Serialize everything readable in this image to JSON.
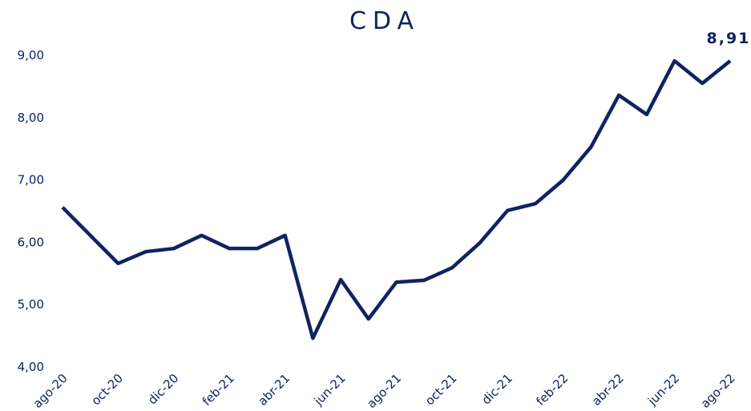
{
  "chart_data": {
    "type": "line",
    "title": "CDA",
    "categories": [
      "ago-20",
      null,
      "oct-20",
      null,
      "dic-20",
      null,
      "feb-21",
      null,
      "abr-21",
      null,
      "jun-21",
      null,
      "ago-21",
      null,
      "oct-21",
      null,
      "dic-21",
      null,
      "feb-22",
      null,
      "abr-22",
      null,
      "jun-22",
      null,
      "ago-22"
    ],
    "series": [
      {
        "name": "CDA",
        "color": "#0f2361",
        "values": [
          6.56,
          6.11,
          5.66,
          5.85,
          5.9,
          6.11,
          5.9,
          5.9,
          6.11,
          4.46,
          5.4,
          4.77,
          5.36,
          5.39,
          5.59,
          5.99,
          6.51,
          6.62,
          7.0,
          7.53,
          8.36,
          8.05,
          8.91,
          8.55,
          8.91
        ],
        "value_labels": [
          null,
          null,
          null,
          null,
          null,
          null,
          null,
          null,
          null,
          null,
          null,
          null,
          null,
          null,
          null,
          null,
          null,
          null,
          null,
          null,
          null,
          null,
          null,
          null,
          "8,91"
        ]
      }
    ],
    "ylim": [
      4,
      9
    ],
    "yticks": [
      {
        "value": 4,
        "label": "4,00"
      },
      {
        "value": 5,
        "label": "5,00"
      },
      {
        "value": 6,
        "label": "6,00"
      },
      {
        "value": 7,
        "label": "7,00"
      },
      {
        "value": 8,
        "label": "8,00"
      },
      {
        "value": 9,
        "label": "9,00"
      }
    ],
    "grid": false
  }
}
